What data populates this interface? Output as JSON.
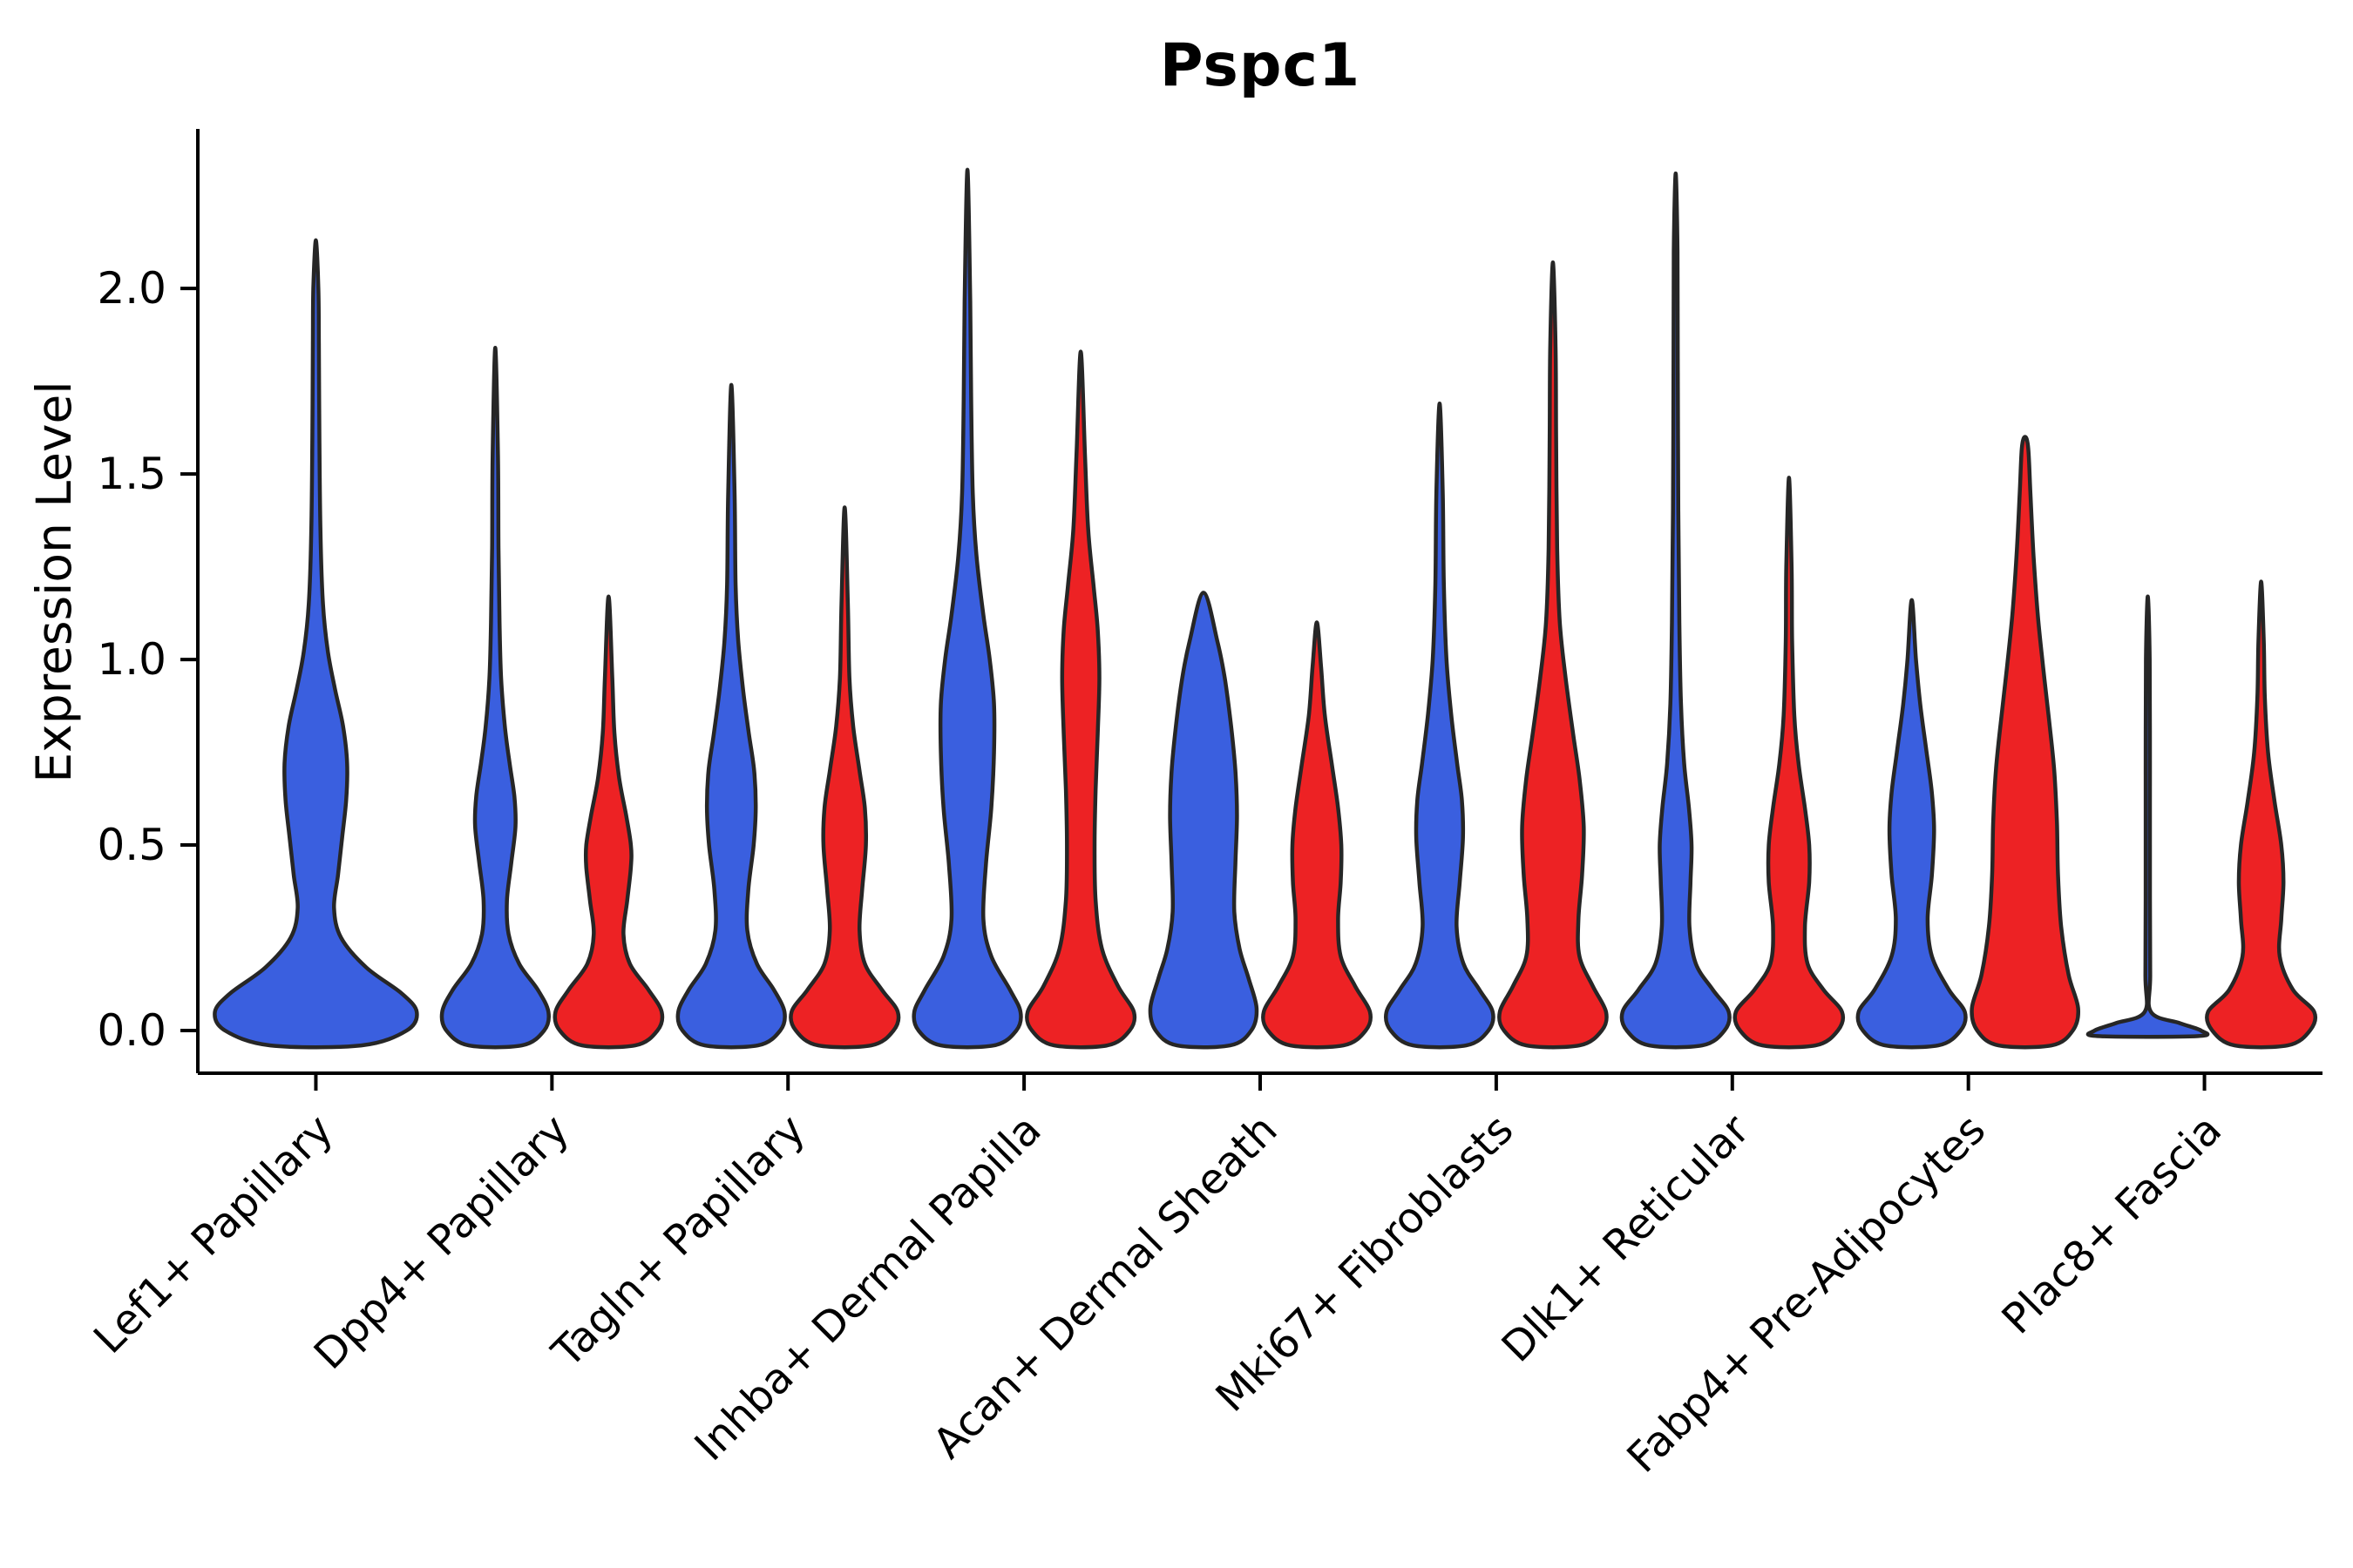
{
  "figure": {
    "title": "Pspc1",
    "ylabel": "Expression Level"
  },
  "chart_data": {
    "type": "violin",
    "title": "Pspc1",
    "xlabel": "",
    "ylabel": "Expression Level",
    "ylim": [
      -0.115,
      2.43
    ],
    "yticks": [
      0.0,
      0.5,
      1.0,
      1.5,
      2.0
    ],
    "ytick_labels": [
      "0.0",
      "0.5",
      "1.0",
      "1.5",
      "2.0"
    ],
    "grid": false,
    "legend": "none",
    "colors": {
      "blue": "#3A5FDF",
      "red": "#ED2224",
      "edge": "#262626",
      "axis": "#000000"
    },
    "categories": [
      "Lef1+ Papillary",
      "Dpp4+ Papillary",
      "Tagln+ Papillary",
      "Inhba+ Dermal Papilla",
      "Acan+ Dermal Sheath",
      "Mki67+ Fibroblasts",
      "Dlk1+ Reticular",
      "Fabp4+ Pre-Adipocytes",
      "Plac8+ Fascia"
    ],
    "violins": [
      {
        "category": 0,
        "name": "Lef1+ Papillary",
        "group": "blue",
        "max": 2.13,
        "offset": 0,
        "width": 1.9,
        "profile": [
          [
            -0.04,
            0.45
          ],
          [
            0.0,
            0.9
          ],
          [
            0.05,
            1.0
          ],
          [
            0.1,
            0.85
          ],
          [
            0.17,
            0.5
          ],
          [
            0.25,
            0.25
          ],
          [
            0.33,
            0.18
          ],
          [
            0.42,
            0.22
          ],
          [
            0.52,
            0.26
          ],
          [
            0.62,
            0.3
          ],
          [
            0.72,
            0.31
          ],
          [
            0.82,
            0.27
          ],
          [
            0.92,
            0.19
          ],
          [
            1.02,
            0.12
          ],
          [
            1.15,
            0.07
          ],
          [
            1.35,
            0.045
          ],
          [
            1.6,
            0.035
          ],
          [
            1.85,
            0.03
          ],
          [
            2.0,
            0.025
          ],
          [
            2.13,
            0.0
          ]
        ]
      },
      {
        "category": 1,
        "name": "Dpp4+ Papillary",
        "group": "blue",
        "max": 1.84,
        "offset": -1,
        "width": 1.0,
        "profile": [
          [
            -0.04,
            0.5
          ],
          [
            0.0,
            0.92
          ],
          [
            0.05,
            1.0
          ],
          [
            0.11,
            0.8
          ],
          [
            0.18,
            0.45
          ],
          [
            0.26,
            0.25
          ],
          [
            0.35,
            0.22
          ],
          [
            0.45,
            0.3
          ],
          [
            0.55,
            0.38
          ],
          [
            0.63,
            0.36
          ],
          [
            0.72,
            0.27
          ],
          [
            0.82,
            0.18
          ],
          [
            0.95,
            0.11
          ],
          [
            1.1,
            0.08
          ],
          [
            1.3,
            0.06
          ],
          [
            1.55,
            0.05
          ],
          [
            1.84,
            0.0
          ]
        ]
      },
      {
        "category": 1,
        "name": "Dpp4+ Papillary",
        "group": "red",
        "max": 1.17,
        "offset": 1,
        "width": 1.0,
        "profile": [
          [
            -0.04,
            0.5
          ],
          [
            0.0,
            0.92
          ],
          [
            0.05,
            1.0
          ],
          [
            0.11,
            0.75
          ],
          [
            0.18,
            0.4
          ],
          [
            0.26,
            0.28
          ],
          [
            0.35,
            0.35
          ],
          [
            0.44,
            0.42
          ],
          [
            0.5,
            0.42
          ],
          [
            0.58,
            0.33
          ],
          [
            0.68,
            0.2
          ],
          [
            0.8,
            0.11
          ],
          [
            0.95,
            0.07
          ],
          [
            1.17,
            0.0
          ]
        ]
      },
      {
        "category": 2,
        "name": "Tagln+ Papillary",
        "group": "blue",
        "max": 1.74,
        "offset": -1,
        "width": 1.0,
        "profile": [
          [
            -0.04,
            0.5
          ],
          [
            0.0,
            0.92
          ],
          [
            0.05,
            1.0
          ],
          [
            0.11,
            0.8
          ],
          [
            0.18,
            0.48
          ],
          [
            0.27,
            0.3
          ],
          [
            0.38,
            0.32
          ],
          [
            0.5,
            0.42
          ],
          [
            0.6,
            0.46
          ],
          [
            0.7,
            0.43
          ],
          [
            0.8,
            0.33
          ],
          [
            0.92,
            0.22
          ],
          [
            1.05,
            0.13
          ],
          [
            1.2,
            0.08
          ],
          [
            1.45,
            0.06
          ],
          [
            1.74,
            0.0
          ]
        ]
      },
      {
        "category": 2,
        "name": "Tagln+ Papillary",
        "group": "red",
        "max": 1.41,
        "offset": 1,
        "width": 1.0,
        "profile": [
          [
            -0.04,
            0.5
          ],
          [
            0.0,
            0.92
          ],
          [
            0.05,
            1.0
          ],
          [
            0.11,
            0.7
          ],
          [
            0.18,
            0.38
          ],
          [
            0.27,
            0.28
          ],
          [
            0.38,
            0.33
          ],
          [
            0.5,
            0.4
          ],
          [
            0.6,
            0.38
          ],
          [
            0.7,
            0.28
          ],
          [
            0.82,
            0.16
          ],
          [
            0.95,
            0.09
          ],
          [
            1.15,
            0.06
          ],
          [
            1.41,
            0.0
          ]
        ]
      },
      {
        "category": 3,
        "name": "Inhba+ Dermal Papilla",
        "group": "blue",
        "max": 2.32,
        "offset": -1,
        "width": 1.0,
        "profile": [
          [
            -0.04,
            0.5
          ],
          [
            0.0,
            0.92
          ],
          [
            0.05,
            1.0
          ],
          [
            0.11,
            0.8
          ],
          [
            0.2,
            0.45
          ],
          [
            0.3,
            0.3
          ],
          [
            0.45,
            0.35
          ],
          [
            0.6,
            0.45
          ],
          [
            0.75,
            0.5
          ],
          [
            0.88,
            0.5
          ],
          [
            1.0,
            0.42
          ],
          [
            1.12,
            0.3
          ],
          [
            1.28,
            0.17
          ],
          [
            1.45,
            0.1
          ],
          [
            1.7,
            0.07
          ],
          [
            2.0,
            0.05
          ],
          [
            2.32,
            0.0
          ]
        ]
      },
      {
        "category": 3,
        "name": "Inhba+ Dermal Papilla",
        "group": "red",
        "max": 1.83,
        "offset": 1,
        "width": 1.0,
        "profile": [
          [
            -0.04,
            0.5
          ],
          [
            0.0,
            0.92
          ],
          [
            0.05,
            1.0
          ],
          [
            0.12,
            0.7
          ],
          [
            0.22,
            0.4
          ],
          [
            0.35,
            0.28
          ],
          [
            0.5,
            0.26
          ],
          [
            0.65,
            0.28
          ],
          [
            0.8,
            0.32
          ],
          [
            0.95,
            0.35
          ],
          [
            1.08,
            0.32
          ],
          [
            1.2,
            0.24
          ],
          [
            1.35,
            0.14
          ],
          [
            1.55,
            0.08
          ],
          [
            1.83,
            0.0
          ]
        ]
      },
      {
        "category": 4,
        "name": "Acan+ Dermal Sheath",
        "group": "blue",
        "max": 1.18,
        "offset": -1,
        "width": 1.0,
        "profile": [
          [
            -0.04,
            0.5
          ],
          [
            0.0,
            0.9
          ],
          [
            0.06,
            1.0
          ],
          [
            0.14,
            0.85
          ],
          [
            0.22,
            0.68
          ],
          [
            0.32,
            0.58
          ],
          [
            0.45,
            0.6
          ],
          [
            0.58,
            0.63
          ],
          [
            0.7,
            0.6
          ],
          [
            0.82,
            0.52
          ],
          [
            0.95,
            0.4
          ],
          [
            1.05,
            0.26
          ],
          [
            1.18,
            0.0
          ]
        ]
      },
      {
        "category": 4,
        "name": "Acan+ Dermal Sheath",
        "group": "red",
        "max": 1.1,
        "offset": 1,
        "width": 1.0,
        "profile": [
          [
            -0.04,
            0.5
          ],
          [
            0.0,
            0.92
          ],
          [
            0.05,
            1.0
          ],
          [
            0.12,
            0.72
          ],
          [
            0.2,
            0.45
          ],
          [
            0.3,
            0.4
          ],
          [
            0.4,
            0.45
          ],
          [
            0.5,
            0.46
          ],
          [
            0.6,
            0.4
          ],
          [
            0.72,
            0.28
          ],
          [
            0.85,
            0.15
          ],
          [
            0.98,
            0.08
          ],
          [
            1.1,
            0.0
          ]
        ]
      },
      {
        "category": 5,
        "name": "Mki67+ Fibroblasts",
        "group": "blue",
        "max": 1.69,
        "offset": -1,
        "width": 1.0,
        "profile": [
          [
            -0.04,
            0.5
          ],
          [
            0.0,
            0.92
          ],
          [
            0.05,
            1.0
          ],
          [
            0.11,
            0.75
          ],
          [
            0.18,
            0.45
          ],
          [
            0.28,
            0.32
          ],
          [
            0.4,
            0.38
          ],
          [
            0.52,
            0.44
          ],
          [
            0.62,
            0.42
          ],
          [
            0.72,
            0.33
          ],
          [
            0.85,
            0.22
          ],
          [
            1.0,
            0.13
          ],
          [
            1.2,
            0.08
          ],
          [
            1.45,
            0.06
          ],
          [
            1.69,
            0.0
          ]
        ]
      },
      {
        "category": 5,
        "name": "Mki67+ Fibroblasts",
        "group": "red",
        "max": 2.07,
        "offset": 1,
        "width": 1.0,
        "profile": [
          [
            -0.04,
            0.5
          ],
          [
            0.0,
            0.92
          ],
          [
            0.05,
            1.0
          ],
          [
            0.12,
            0.75
          ],
          [
            0.2,
            0.5
          ],
          [
            0.3,
            0.48
          ],
          [
            0.42,
            0.55
          ],
          [
            0.55,
            0.58
          ],
          [
            0.68,
            0.5
          ],
          [
            0.8,
            0.38
          ],
          [
            0.95,
            0.24
          ],
          [
            1.1,
            0.13
          ],
          [
            1.3,
            0.08
          ],
          [
            1.6,
            0.06
          ],
          [
            1.85,
            0.05
          ],
          [
            2.07,
            0.0
          ]
        ]
      },
      {
        "category": 6,
        "name": "Dlk1+ Reticular",
        "group": "blue",
        "max": 2.31,
        "offset": -1,
        "width": 1.0,
        "profile": [
          [
            -0.04,
            0.5
          ],
          [
            0.0,
            0.92
          ],
          [
            0.05,
            1.0
          ],
          [
            0.11,
            0.7
          ],
          [
            0.18,
            0.38
          ],
          [
            0.28,
            0.26
          ],
          [
            0.4,
            0.28
          ],
          [
            0.5,
            0.3
          ],
          [
            0.6,
            0.25
          ],
          [
            0.72,
            0.16
          ],
          [
            0.88,
            0.1
          ],
          [
            1.1,
            0.07
          ],
          [
            1.4,
            0.05
          ],
          [
            1.8,
            0.04
          ],
          [
            2.1,
            0.035
          ],
          [
            2.31,
            0.0
          ]
        ]
      },
      {
        "category": 6,
        "name": "Dlk1+ Reticular",
        "group": "red",
        "max": 1.49,
        "offset": 1,
        "width": 1.0,
        "profile": [
          [
            -0.04,
            0.5
          ],
          [
            0.0,
            0.92
          ],
          [
            0.05,
            1.0
          ],
          [
            0.11,
            0.65
          ],
          [
            0.18,
            0.35
          ],
          [
            0.28,
            0.3
          ],
          [
            0.4,
            0.38
          ],
          [
            0.5,
            0.38
          ],
          [
            0.6,
            0.3
          ],
          [
            0.72,
            0.18
          ],
          [
            0.85,
            0.1
          ],
          [
            1.05,
            0.06
          ],
          [
            1.25,
            0.05
          ],
          [
            1.49,
            0.0
          ]
        ]
      },
      {
        "category": 7,
        "name": "Fabp4+ Pre-Adipocytes",
        "group": "blue",
        "max": 1.16,
        "offset": -1,
        "width": 1.0,
        "profile": [
          [
            -0.04,
            0.5
          ],
          [
            0.0,
            0.92
          ],
          [
            0.05,
            1.0
          ],
          [
            0.11,
            0.7
          ],
          [
            0.2,
            0.38
          ],
          [
            0.3,
            0.3
          ],
          [
            0.42,
            0.38
          ],
          [
            0.54,
            0.42
          ],
          [
            0.64,
            0.38
          ],
          [
            0.75,
            0.28
          ],
          [
            0.88,
            0.16
          ],
          [
            1.0,
            0.08
          ],
          [
            1.16,
            0.0
          ]
        ]
      },
      {
        "category": 7,
        "name": "Fabp4+ Pre-Adipocytes",
        "group": "red",
        "max": 1.6,
        "offset": 1,
        "width": 1.0,
        "profile": [
          [
            -0.04,
            0.5
          ],
          [
            0.0,
            0.9
          ],
          [
            0.06,
            1.0
          ],
          [
            0.15,
            0.82
          ],
          [
            0.28,
            0.68
          ],
          [
            0.42,
            0.62
          ],
          [
            0.56,
            0.6
          ],
          [
            0.7,
            0.55
          ],
          [
            0.84,
            0.45
          ],
          [
            0.98,
            0.34
          ],
          [
            1.12,
            0.24
          ],
          [
            1.28,
            0.16
          ],
          [
            1.45,
            0.1
          ],
          [
            1.57,
            0.06
          ],
          [
            1.6,
            0.0
          ]
        ]
      },
      {
        "category": 8,
        "name": "Plac8+ Fascia",
        "group": "blue",
        "max": 1.17,
        "offset": -1,
        "width": 1.0,
        "profile": [
          [
            -0.015,
            0.95
          ],
          [
            0.0,
            1.0
          ],
          [
            0.02,
            0.6
          ],
          [
            0.05,
            0.06
          ],
          [
            0.15,
            0.045
          ],
          [
            0.4,
            0.04
          ],
          [
            0.7,
            0.04
          ],
          [
            1.0,
            0.035
          ],
          [
            1.17,
            0.0
          ]
        ]
      },
      {
        "category": 8,
        "name": "Plac8+ Fascia",
        "group": "red",
        "max": 1.21,
        "offset": 1,
        "width": 1.0,
        "profile": [
          [
            -0.04,
            0.5
          ],
          [
            0.0,
            0.92
          ],
          [
            0.05,
            1.0
          ],
          [
            0.11,
            0.6
          ],
          [
            0.2,
            0.35
          ],
          [
            0.3,
            0.38
          ],
          [
            0.4,
            0.42
          ],
          [
            0.5,
            0.38
          ],
          [
            0.62,
            0.25
          ],
          [
            0.75,
            0.13
          ],
          [
            0.9,
            0.07
          ],
          [
            1.05,
            0.05
          ],
          [
            1.21,
            0.0
          ]
        ]
      }
    ]
  }
}
